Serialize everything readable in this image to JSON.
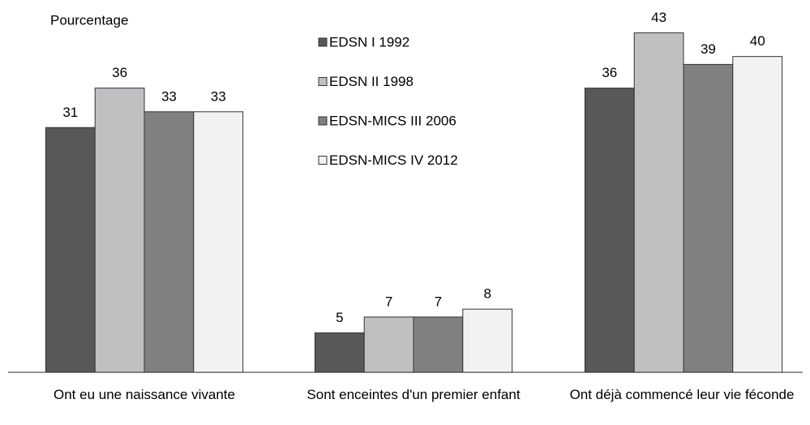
{
  "chart_data": {
    "type": "bar",
    "y_label": "Pourcentage",
    "categories": [
      "Ont eu une naissance vivante",
      "Sont enceintes d'un premier enfant",
      "Ont déjà commencé leur vie féconde"
    ],
    "series": [
      {
        "name": "EDSN I 1992",
        "color": "#58585a",
        "values": [
          31,
          5,
          36
        ]
      },
      {
        "name": "EDSN II 1998",
        "color": "#c0c0c2",
        "values": [
          36,
          7,
          43
        ]
      },
      {
        "name": "EDSN-MICS III 2006",
        "color": "#808083",
        "values": [
          33,
          7,
          39
        ]
      },
      {
        "name": "EDSN-MICS IV 2012",
        "color": "#f2f2f2",
        "values": [
          33,
          8,
          40
        ]
      }
    ],
    "ylim": [
      0,
      45
    ],
    "legend": "top-center"
  }
}
